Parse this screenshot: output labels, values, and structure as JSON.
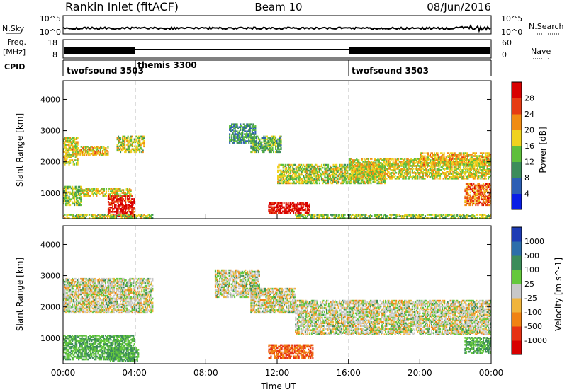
{
  "header": {
    "title": "Rankin Inlet (fitACF)",
    "beam": "Beam 10",
    "date": "08/Jun/2016"
  },
  "top_panels": {
    "nsky_label": "N.Sky",
    "nsky_ticks": [
      "10^5",
      "10^0"
    ],
    "nsearch_label": "N.Search",
    "nsearch_ticks": [
      "10^5",
      "10^0"
    ],
    "freq_label": "Freq.",
    "freq_unit": "[MHz]",
    "freq_ticks": [
      "18",
      "8"
    ],
    "nave_label": "Nave",
    "nave_ticks": [
      "60",
      "0"
    ],
    "cpid_label": "CPID",
    "cpid_segments": [
      {
        "label": "twofsound 3503",
        "start_hour": 0,
        "end_hour": 4
      },
      {
        "label": "themis 3300",
        "start_hour": 4,
        "end_hour": 16
      },
      {
        "label": "twofsound 3503",
        "start_hour": 16,
        "end_hour": 24
      }
    ]
  },
  "chart_data": [
    {
      "type": "heatmap",
      "name": "power",
      "xlabel": "Time UT",
      "ylabel": "Slant Range [km]",
      "xlim": [
        0,
        24
      ],
      "ylim": [
        180,
        4600
      ],
      "x_ticks": [
        "00:00",
        "04:00",
        "08:00",
        "12:00",
        "16:00",
        "20:00",
        "00:00"
      ],
      "y_ticks": [
        "1000",
        "2000",
        "3000",
        "4000"
      ],
      "colorbar": {
        "label": "Power [dB]",
        "ticks": [
          "4",
          "8",
          "12",
          "16",
          "20",
          "24",
          "28"
        ],
        "colors": [
          "#0a1ee6",
          "#2d5fb4",
          "#3c8c5a",
          "#5fbf3c",
          "#f0d21e",
          "#f08c14",
          "#e63c14",
          "#d80000"
        ]
      },
      "echo_regions": [
        {
          "t": [
            0.0,
            0.8
          ],
          "r": [
            1900,
            2800
          ],
          "level": 0.55
        },
        {
          "t": [
            0.0,
            1.0
          ],
          "r": [
            600,
            1200
          ],
          "level": 0.45
        },
        {
          "t": [
            0.5,
            2.5
          ],
          "r": [
            2200,
            2500
          ],
          "level": 0.6
        },
        {
          "t": [
            1.0,
            3.8
          ],
          "r": [
            900,
            1150
          ],
          "level": 0.55
        },
        {
          "t": [
            2.5,
            4.0
          ],
          "r": [
            250,
            900
          ],
          "level": 0.9
        },
        {
          "t": [
            3.0,
            4.5
          ],
          "r": [
            2300,
            2800
          ],
          "level": 0.5
        },
        {
          "t": [
            0.0,
            5.0
          ],
          "r": [
            200,
            320
          ],
          "level": 0.5
        },
        {
          "t": [
            9.3,
            10.8
          ],
          "r": [
            2600,
            3200
          ],
          "level": 0.3
        },
        {
          "t": [
            10.5,
            12.2
          ],
          "r": [
            2300,
            2800
          ],
          "level": 0.4
        },
        {
          "t": [
            11.5,
            13.8
          ],
          "r": [
            350,
            700
          ],
          "level": 0.95
        },
        {
          "t": [
            12.0,
            18.0
          ],
          "r": [
            1300,
            1900
          ],
          "level": 0.5
        },
        {
          "t": [
            16.0,
            24.0
          ],
          "r": [
            1450,
            2100
          ],
          "level": 0.55
        },
        {
          "t": [
            20.0,
            24.0
          ],
          "r": [
            1900,
            2300
          ],
          "level": 0.6
        },
        {
          "t": [
            22.5,
            24.0
          ],
          "r": [
            600,
            1300
          ],
          "level": 0.75
        },
        {
          "t": [
            13.0,
            24.0
          ],
          "r": [
            200,
            330
          ],
          "level": 0.45
        }
      ]
    },
    {
      "type": "heatmap",
      "name": "velocity",
      "xlabel": "Time UT",
      "ylabel": "Slant Range [km]",
      "xlim": [
        0,
        24
      ],
      "ylim": [
        180,
        4600
      ],
      "x_ticks": [
        "00:00",
        "04:00",
        "08:00",
        "12:00",
        "16:00",
        "20:00",
        "00:00"
      ],
      "y_ticks": [
        "1000",
        "2000",
        "3000",
        "4000"
      ],
      "colorbar": {
        "label": "Velocity [m s^-1]",
        "ticks": [
          "1000",
          "500",
          "100",
          "25",
          "-25",
          "-100",
          "-500",
          "-1000"
        ],
        "colors": [
          "#1e3cb4",
          "#2d6eaa",
          "#3c8c5a",
          "#64c83c",
          "#c8c8c8",
          "#f0b43c",
          "#f08214",
          "#e63214",
          "#d80000"
        ]
      },
      "echo_regions": [
        {
          "t": [
            0.0,
            5.0
          ],
          "r": [
            1800,
            2900
          ],
          "level": 0.5
        },
        {
          "t": [
            0.0,
            4.0
          ],
          "r": [
            300,
            1100
          ],
          "level": 0.35
        },
        {
          "t": [
            2.5,
            4.2
          ],
          "r": [
            250,
            700
          ],
          "level": 0.25
        },
        {
          "t": [
            8.5,
            11.0
          ],
          "r": [
            2300,
            3200
          ],
          "level": 0.5
        },
        {
          "t": [
            10.5,
            13.0
          ],
          "r": [
            1800,
            2600
          ],
          "level": 0.5
        },
        {
          "t": [
            11.5,
            14.0
          ],
          "r": [
            350,
            800
          ],
          "level": 0.75
        },
        {
          "t": [
            13.0,
            24.0
          ],
          "r": [
            1100,
            2200
          ],
          "level": 0.5
        },
        {
          "t": [
            22.5,
            24.0
          ],
          "r": [
            500,
            1000
          ],
          "level": 0.3
        }
      ]
    }
  ]
}
